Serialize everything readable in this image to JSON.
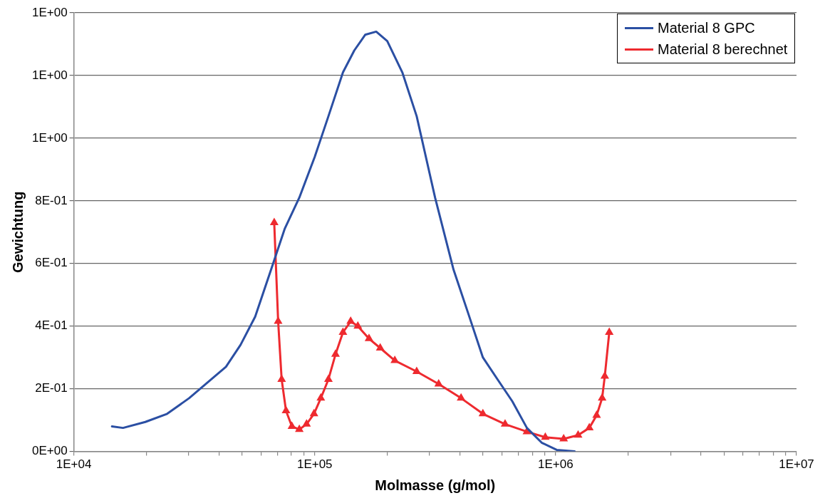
{
  "chart_data": {
    "type": "line",
    "xlabel": "Molmasse (g/mol)",
    "ylabel": "Gewichtung",
    "log": "x",
    "grid": "y",
    "legend": "top right",
    "line_style": "solid",
    "xlim": [
      10000,
      10000000
    ],
    "xticks": [
      {
        "value": 10000,
        "label": "1E+04"
      },
      {
        "value": 20000,
        "label": null
      },
      {
        "value": 30000,
        "label": null
      },
      {
        "value": 40000,
        "label": null
      },
      {
        "value": 50000,
        "label": null
      },
      {
        "value": 60000,
        "label": null
      },
      {
        "value": 70000,
        "label": null
      },
      {
        "value": 80000,
        "label": null
      },
      {
        "value": 90000,
        "label": null
      },
      {
        "value": 100000,
        "label": "1E+05"
      },
      {
        "value": 200000,
        "label": null
      },
      {
        "value": 300000,
        "label": null
      },
      {
        "value": 400000,
        "label": null
      },
      {
        "value": 500000,
        "label": null
      },
      {
        "value": 600000,
        "label": null
      },
      {
        "value": 700000,
        "label": null
      },
      {
        "value": 800000,
        "label": null
      },
      {
        "value": 900000,
        "label": null
      },
      {
        "value": 1000000,
        "label": "1E+06"
      },
      {
        "value": 2000000,
        "label": null
      },
      {
        "value": 3000000,
        "label": null
      },
      {
        "value": 4000000,
        "label": null
      },
      {
        "value": 5000000,
        "label": null
      },
      {
        "value": 6000000,
        "label": null
      },
      {
        "value": 7000000,
        "label": null
      },
      {
        "value": 8000000,
        "label": null
      },
      {
        "value": 9000000,
        "label": null
      },
      {
        "value": 10000000,
        "label": "1E+07"
      }
    ],
    "ylim": [
      0,
      1.4
    ],
    "yticks": [
      {
        "value": 0,
        "label": "0E+00"
      },
      {
        "value": 0.2,
        "label": "2E-01"
      },
      {
        "value": 0.4,
        "label": "4E-01"
      },
      {
        "value": 0.6,
        "label": "6E-01"
      },
      {
        "value": 0.8,
        "label": "8E-01"
      },
      {
        "value": 1.0,
        "label": "1E+00"
      },
      {
        "value": 1.2,
        "label": "1E+00"
      },
      {
        "value": 1.4,
        "label": "1E+00"
      }
    ],
    "series": [
      {
        "name": "Material 8 GPC",
        "color": "#2b4fa3",
        "marker": "none",
        "x": [
          14400,
          16000,
          19800,
          24400,
          30100,
          37200,
          42800,
          49200,
          56600,
          65200,
          75000,
          86300,
          100000,
          114000,
          131000,
          146000,
          162000,
          180000,
          200000,
          231000,
          265000,
          316000,
          377000,
          434000,
          499000,
          574000,
          661000,
          760000,
          875000,
          1010000,
          1200000
        ],
        "values": [
          0.08,
          0.075,
          0.094,
          0.12,
          0.17,
          0.23,
          0.27,
          0.34,
          0.43,
          0.57,
          0.71,
          0.81,
          0.94,
          1.07,
          1.21,
          1.28,
          1.33,
          1.34,
          1.31,
          1.21,
          1.07,
          0.81,
          0.58,
          0.44,
          0.3,
          0.23,
          0.16,
          0.075,
          0.028,
          0.005,
          0
        ]
      },
      {
        "name": "Material 8 berechnet",
        "color": "#ee2a2f",
        "marker": "triangle",
        "x": [
          67900,
          70500,
          72900,
          76000,
          80400,
          86300,
          92500,
          99300,
          106000,
          114000,
          122000,
          131000,
          141000,
          151000,
          168000,
          187000,
          215000,
          265000,
          327000,
          405000,
          499000,
          617000,
          760000,
          906000,
          1080000,
          1240000,
          1380000,
          1480000,
          1560000,
          1600000,
          1670000
        ],
        "values": [
          0.73,
          0.415,
          0.23,
          0.13,
          0.08,
          0.07,
          0.087,
          0.12,
          0.17,
          0.23,
          0.31,
          0.38,
          0.415,
          0.4,
          0.36,
          0.33,
          0.29,
          0.255,
          0.215,
          0.17,
          0.12,
          0.087,
          0.063,
          0.045,
          0.04,
          0.052,
          0.075,
          0.115,
          0.17,
          0.24,
          0.38
        ]
      }
    ]
  }
}
